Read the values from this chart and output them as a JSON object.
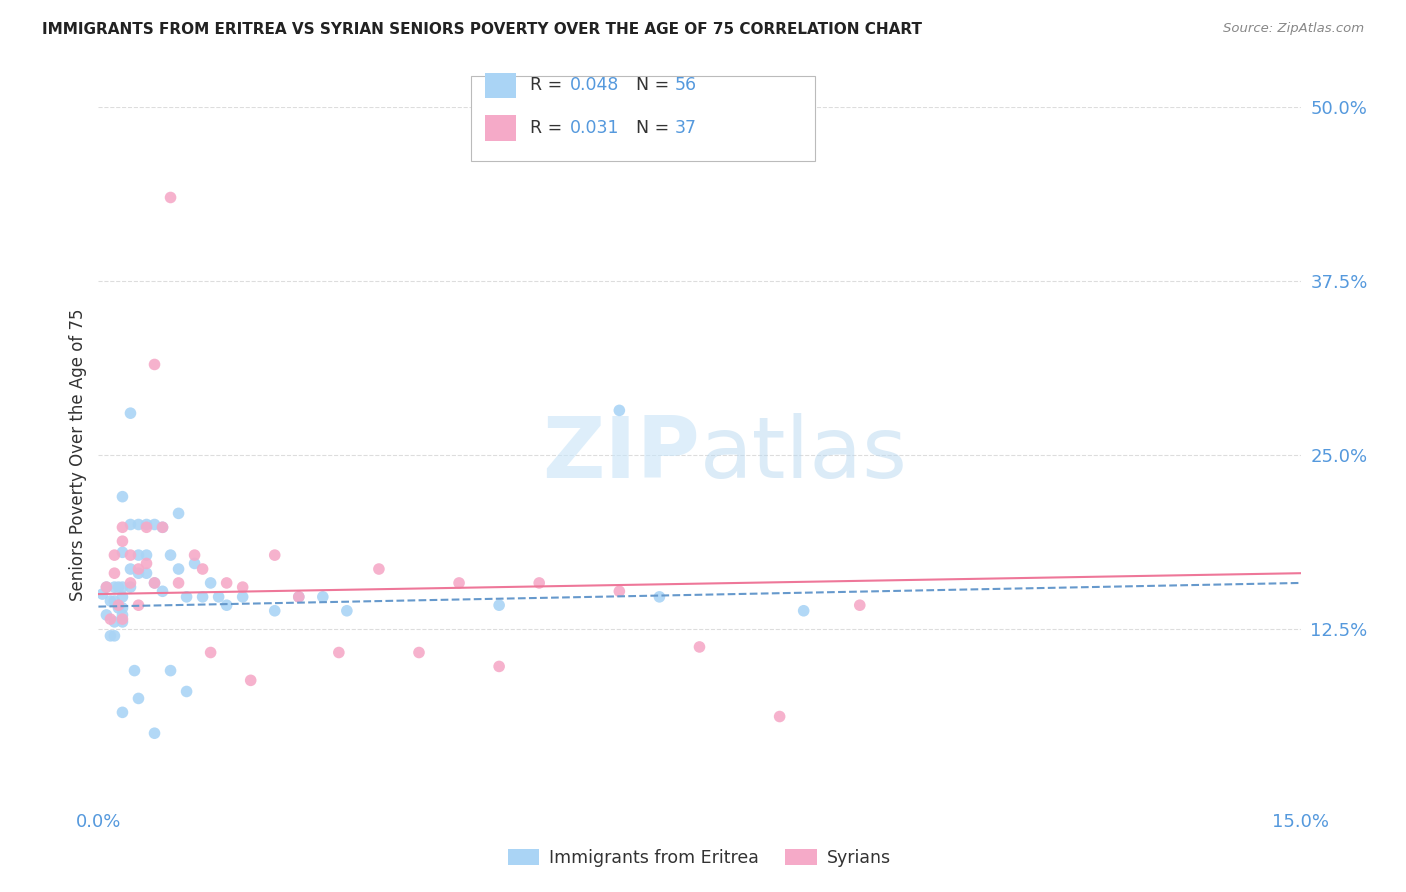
{
  "title": "IMMIGRANTS FROM ERITREA VS SYRIAN SENIORS POVERTY OVER THE AGE OF 75 CORRELATION CHART",
  "source": "Source: ZipAtlas.com",
  "ylabel": "Seniors Poverty Over the Age of 75",
  "xlim": [
    0.0,
    0.15
  ],
  "ylim": [
    0.0,
    0.5
  ],
  "yticks_right": [
    0.125,
    0.25,
    0.375,
    0.5
  ],
  "ytick_labels_right": [
    "12.5%",
    "25.0%",
    "37.5%",
    "50.0%"
  ],
  "background_color": "#ffffff",
  "eritrea_color": "#aad4f5",
  "syrian_color": "#f5aac8",
  "eritrea_line_color": "#6699cc",
  "syrian_line_color": "#ee7799",
  "grid_color": "#dddddd",
  "label_color": "#5599dd",
  "title_color": "#222222",
  "source_color": "#888888",
  "eritrea_label": "Immigrants from Eritrea",
  "syrian_label": "Syrians",
  "legend_r1": "R = ",
  "legend_v1": "0.048",
  "legend_n1_label": "N = ",
  "legend_n1_val": "56",
  "legend_r2": "R = ",
  "legend_v2": "0.031",
  "legend_n2_label": "N = ",
  "legend_n2_val": "37",
  "eritrea_trend_x": [
    0.0,
    0.15
  ],
  "eritrea_trend_y": [
    0.141,
    0.158
  ],
  "syrian_trend_x": [
    0.0,
    0.15
  ],
  "syrian_trend_y": [
    0.15,
    0.165
  ],
  "eritrea_points_x": [
    0.0005,
    0.001,
    0.0015,
    0.001,
    0.0015,
    0.002,
    0.002,
    0.002,
    0.0025,
    0.002,
    0.0025,
    0.003,
    0.003,
    0.003,
    0.003,
    0.003,
    0.003,
    0.003,
    0.003,
    0.004,
    0.004,
    0.004,
    0.004,
    0.0045,
    0.005,
    0.005,
    0.005,
    0.005,
    0.006,
    0.006,
    0.006,
    0.007,
    0.007,
    0.007,
    0.008,
    0.008,
    0.009,
    0.009,
    0.01,
    0.01,
    0.011,
    0.011,
    0.012,
    0.013,
    0.014,
    0.015,
    0.016,
    0.018,
    0.022,
    0.025,
    0.028,
    0.031,
    0.05,
    0.065,
    0.07,
    0.088
  ],
  "eritrea_points_y": [
    0.15,
    0.135,
    0.12,
    0.155,
    0.145,
    0.155,
    0.145,
    0.13,
    0.14,
    0.12,
    0.155,
    0.22,
    0.18,
    0.155,
    0.148,
    0.14,
    0.135,
    0.13,
    0.065,
    0.28,
    0.2,
    0.168,
    0.155,
    0.095,
    0.2,
    0.178,
    0.165,
    0.075,
    0.2,
    0.178,
    0.165,
    0.2,
    0.158,
    0.05,
    0.198,
    0.152,
    0.178,
    0.095,
    0.208,
    0.168,
    0.148,
    0.08,
    0.172,
    0.148,
    0.158,
    0.148,
    0.142,
    0.148,
    0.138,
    0.148,
    0.148,
    0.138,
    0.142,
    0.282,
    0.148,
    0.138
  ],
  "syrian_points_x": [
    0.001,
    0.0015,
    0.002,
    0.002,
    0.0025,
    0.003,
    0.003,
    0.003,
    0.004,
    0.004,
    0.005,
    0.005,
    0.006,
    0.006,
    0.007,
    0.007,
    0.008,
    0.009,
    0.01,
    0.012,
    0.013,
    0.014,
    0.016,
    0.018,
    0.019,
    0.022,
    0.025,
    0.03,
    0.035,
    0.04,
    0.045,
    0.05,
    0.055,
    0.065,
    0.075,
    0.085,
    0.095
  ],
  "syrian_points_y": [
    0.155,
    0.132,
    0.178,
    0.165,
    0.142,
    0.198,
    0.188,
    0.132,
    0.178,
    0.158,
    0.168,
    0.142,
    0.198,
    0.172,
    0.315,
    0.158,
    0.198,
    0.435,
    0.158,
    0.178,
    0.168,
    0.108,
    0.158,
    0.155,
    0.088,
    0.178,
    0.148,
    0.108,
    0.168,
    0.108,
    0.158,
    0.098,
    0.158,
    0.152,
    0.112,
    0.062,
    0.142
  ]
}
